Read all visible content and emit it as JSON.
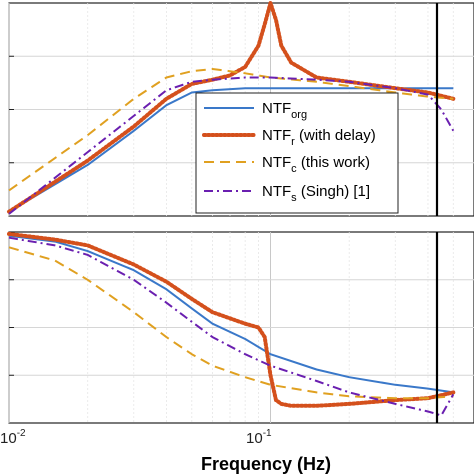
{
  "chart_data": [
    {
      "type": "line",
      "panel": "top",
      "x_scale": "log",
      "xlim": [
        0.01,
        0.6
      ],
      "ylim": [
        0,
        1
      ],
      "grid": true,
      "legend_placement": "lower-right",
      "series": [
        {
          "name": "NTF_org",
          "color": "#3a78c9",
          "style": "solid",
          "x": [
            0.01,
            0.02,
            0.03,
            0.04,
            0.05,
            0.06,
            0.08,
            0.1,
            0.15,
            0.2,
            0.3,
            0.4,
            0.5
          ],
          "y": [
            0.02,
            0.24,
            0.4,
            0.52,
            0.58,
            0.59,
            0.6,
            0.6,
            0.6,
            0.6,
            0.6,
            0.6,
            0.6
          ]
        },
        {
          "name": "NTF_r (with delay)",
          "color": "#d4501c",
          "style": "dotted",
          "x": [
            0.01,
            0.02,
            0.03,
            0.04,
            0.05,
            0.06,
            0.07,
            0.08,
            0.09,
            0.095,
            0.1,
            0.105,
            0.11,
            0.12,
            0.15,
            0.2,
            0.3,
            0.4,
            0.5
          ],
          "y": [
            0.02,
            0.26,
            0.42,
            0.55,
            0.62,
            0.64,
            0.66,
            0.7,
            0.8,
            0.9,
            1.0,
            0.92,
            0.8,
            0.72,
            0.65,
            0.63,
            0.6,
            0.58,
            0.55
          ]
        },
        {
          "name": "NTF_c (this work)",
          "color": "#e0a020",
          "style": "dashed",
          "x": [
            0.01,
            0.02,
            0.03,
            0.04,
            0.05,
            0.06,
            0.07,
            0.08,
            0.1,
            0.15,
            0.2,
            0.3,
            0.4,
            0.5
          ],
          "y": [
            0.12,
            0.38,
            0.55,
            0.65,
            0.68,
            0.69,
            0.68,
            0.67,
            0.65,
            0.63,
            0.61,
            0.58,
            0.56,
            0.55
          ]
        },
        {
          "name": "NTF_s (Singh) [1]",
          "color": "#6a1fb0",
          "style": "dashdot",
          "x": [
            0.01,
            0.02,
            0.03,
            0.04,
            0.05,
            0.06,
            0.08,
            0.1,
            0.15,
            0.2,
            0.3,
            0.4,
            0.45,
            0.5
          ],
          "y": [
            0.01,
            0.3,
            0.47,
            0.59,
            0.63,
            0.64,
            0.65,
            0.65,
            0.64,
            0.63,
            0.6,
            0.57,
            0.5,
            0.4
          ]
        }
      ]
    },
    {
      "type": "line",
      "panel": "bottom",
      "x_scale": "log",
      "xlim": [
        0.01,
        0.6
      ],
      "ylim": [
        0,
        1
      ],
      "grid": true,
      "xlabel": "Frequency  (Hz)",
      "x_tick_labels": [
        "10^-2",
        "10^-1"
      ],
      "series": [
        {
          "name": "NTF_org",
          "color": "#3a78c9",
          "style": "solid",
          "x": [
            0.01,
            0.015,
            0.02,
            0.03,
            0.04,
            0.05,
            0.06,
            0.08,
            0.1,
            0.15,
            0.2,
            0.3,
            0.4,
            0.5
          ],
          "y": [
            0.98,
            0.95,
            0.9,
            0.8,
            0.7,
            0.6,
            0.52,
            0.44,
            0.36,
            0.28,
            0.24,
            0.2,
            0.18,
            0.16
          ]
        },
        {
          "name": "NTF_r (with delay)",
          "color": "#d4501c",
          "style": "dotted",
          "x": [
            0.01,
            0.015,
            0.02,
            0.03,
            0.04,
            0.05,
            0.06,
            0.08,
            0.09,
            0.095,
            0.1,
            0.105,
            0.11,
            0.12,
            0.15,
            0.2,
            0.3,
            0.4,
            0.5
          ],
          "y": [
            0.99,
            0.96,
            0.93,
            0.83,
            0.74,
            0.65,
            0.58,
            0.52,
            0.5,
            0.45,
            0.25,
            0.12,
            0.1,
            0.09,
            0.09,
            0.1,
            0.12,
            0.13,
            0.16
          ]
        },
        {
          "name": "NTF_c (this work)",
          "color": "#e0a020",
          "style": "dashed",
          "x": [
            0.01,
            0.015,
            0.02,
            0.03,
            0.04,
            0.05,
            0.06,
            0.08,
            0.1,
            0.15,
            0.2,
            0.3,
            0.4,
            0.5
          ],
          "y": [
            0.92,
            0.85,
            0.75,
            0.58,
            0.45,
            0.36,
            0.3,
            0.24,
            0.2,
            0.16,
            0.14,
            0.13,
            0.13,
            0.14
          ]
        },
        {
          "name": "NTF_s (Singh) [1]",
          "color": "#6a1fb0",
          "style": "dashdot",
          "x": [
            0.01,
            0.015,
            0.02,
            0.03,
            0.04,
            0.05,
            0.06,
            0.08,
            0.1,
            0.15,
            0.2,
            0.3,
            0.4,
            0.45,
            0.5
          ],
          "y": [
            0.97,
            0.93,
            0.88,
            0.75,
            0.63,
            0.53,
            0.45,
            0.36,
            0.3,
            0.22,
            0.16,
            0.1,
            0.06,
            0.04,
            0.15
          ]
        }
      ]
    }
  ],
  "legend": {
    "entries": [
      {
        "base": "NTF",
        "sub": "org",
        "suffix": ""
      },
      {
        "base": "NTF",
        "sub": "r",
        "suffix": " (with delay)"
      },
      {
        "base": "NTF",
        "sub": "c",
        "suffix": " (this work)"
      },
      {
        "base": "NTF",
        "sub": "s",
        "suffix": " (Singh) [1]"
      }
    ]
  },
  "bottom_axis": {
    "xlabel": "Frequency  (Hz)",
    "tick_base": "10",
    "tick_exponents": [
      "-2",
      "-1"
    ]
  },
  "marker_frequency": 0.5
}
